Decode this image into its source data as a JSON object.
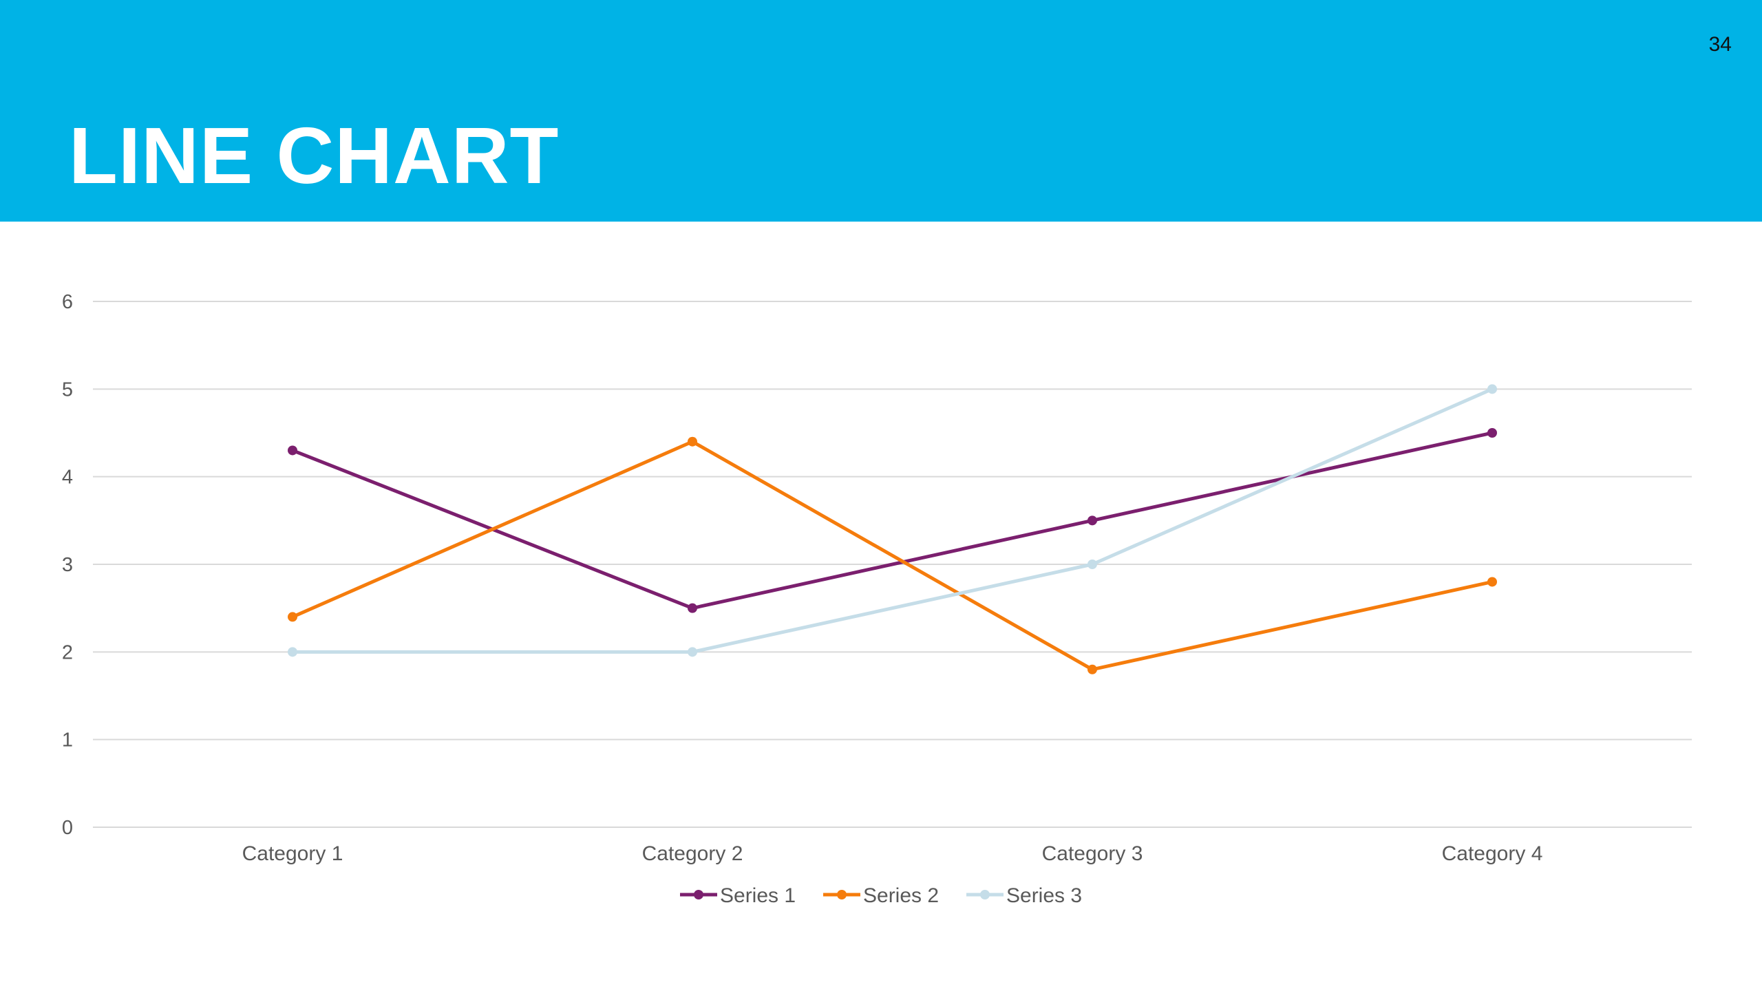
{
  "slide": {
    "title": "LINE CHART",
    "page_number": "34",
    "header_color": "#00b3e6"
  },
  "chart_data": {
    "type": "line",
    "title": "",
    "xlabel": "",
    "ylabel": "",
    "categories": [
      "Category 1",
      "Category 2",
      "Category 3",
      "Category 4"
    ],
    "ylim": [
      0,
      6
    ],
    "yticks": [
      "0",
      "1",
      "2",
      "3",
      "4",
      "5",
      "6"
    ],
    "grid": true,
    "legend_position": "bottom",
    "series": [
      {
        "name": "Series 1",
        "color": "#7b1f6e",
        "values": [
          4.3,
          2.5,
          3.5,
          4.5
        ]
      },
      {
        "name": "Series 2",
        "color": "#f57c0c",
        "values": [
          2.4,
          4.4,
          1.8,
          2.8
        ]
      },
      {
        "name": "Series 3",
        "color": "#c5dde8",
        "values": [
          2.0,
          2.0,
          3.0,
          5.0
        ]
      }
    ]
  }
}
